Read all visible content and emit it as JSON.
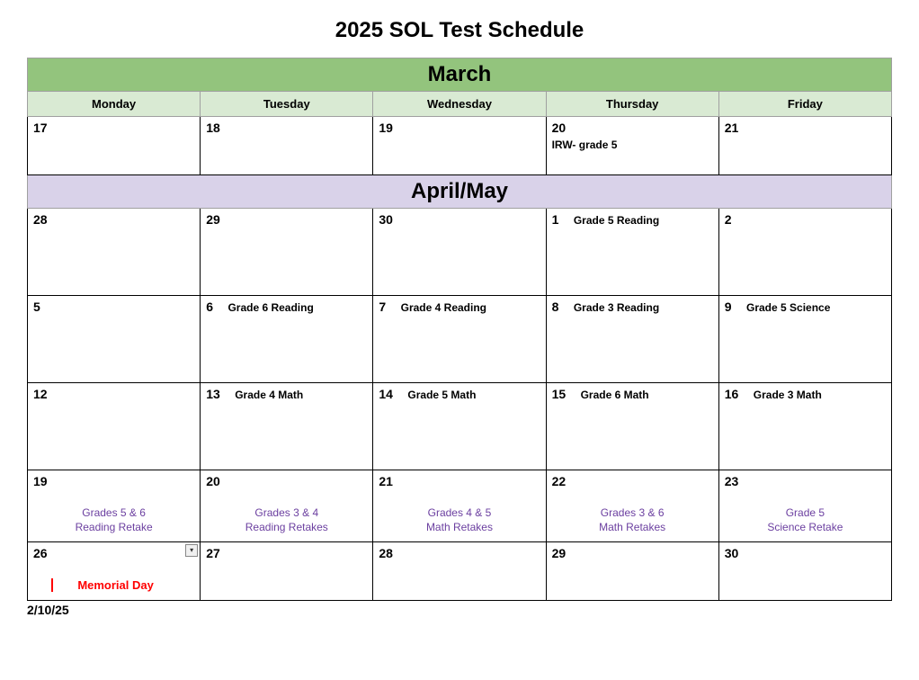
{
  "title": "2025 SOL Test Schedule",
  "colors": {
    "march_bg": "#93c47d",
    "aprilmay_bg": "#d9d2e9",
    "day_header_bg": "#d9ead3",
    "retake_text": "#6b3fa0",
    "holiday_text": "#ff0000",
    "cell_border": "#000000",
    "header_border": "#a0a0a0"
  },
  "typography": {
    "title_fontsize": 24,
    "month_fontsize": 24,
    "dayheader_fontsize": 13,
    "date_fontsize": 14,
    "event_fontsize": 12,
    "retake_fontsize": 12
  },
  "months": {
    "march": "March",
    "aprilmay": "April/May"
  },
  "day_headers": [
    "Monday",
    "Tuesday",
    "Wednesday",
    "Thursday",
    "Friday"
  ],
  "rows": {
    "march_week": [
      {
        "date": "17",
        "event": ""
      },
      {
        "date": "18",
        "event": ""
      },
      {
        "date": "19",
        "event": ""
      },
      {
        "date": "20",
        "event": "IRW- grade 5",
        "event_below": true
      },
      {
        "date": "21",
        "event": ""
      }
    ],
    "am_week1": [
      {
        "date": "28",
        "event": ""
      },
      {
        "date": "29",
        "event": ""
      },
      {
        "date": "30",
        "event": ""
      },
      {
        "date": "1",
        "event": "Grade 5 Reading"
      },
      {
        "date": "2",
        "event": ""
      }
    ],
    "am_week2": [
      {
        "date": "5",
        "event": ""
      },
      {
        "date": "6",
        "event": "Grade 6 Reading"
      },
      {
        "date": "7",
        "event": "Grade 4 Reading"
      },
      {
        "date": "8",
        "event": "Grade 3 Reading"
      },
      {
        "date": "9",
        "event": "Grade 5 Science"
      }
    ],
    "am_week3": [
      {
        "date": "12",
        "event": ""
      },
      {
        "date": "13",
        "event": "Grade 4 Math"
      },
      {
        "date": "14",
        "event": "Grade 5 Math"
      },
      {
        "date": "15",
        "event": "Grade 6 Math"
      },
      {
        "date": "16",
        "event": "Grade 3 Math"
      }
    ],
    "am_week4": [
      {
        "date": "19",
        "retake": "Grades 5 & 6\nReading Retake"
      },
      {
        "date": "20",
        "retake": "Grades 3 & 4\nReading Retakes"
      },
      {
        "date": "21",
        "retake": "Grades 4 & 5\nMath Retakes"
      },
      {
        "date": "22",
        "retake": "Grades 3 & 6\nMath Retakes"
      },
      {
        "date": "23",
        "retake": "Grade 5\nScience Retake"
      }
    ],
    "am_week5": [
      {
        "date": "26",
        "holiday": "Memorial Day",
        "has_dropdown": true
      },
      {
        "date": "27",
        "event": ""
      },
      {
        "date": "28",
        "event": ""
      },
      {
        "date": "29",
        "event": ""
      },
      {
        "date": "30",
        "event": ""
      }
    ]
  },
  "footer_date": "2/10/25"
}
